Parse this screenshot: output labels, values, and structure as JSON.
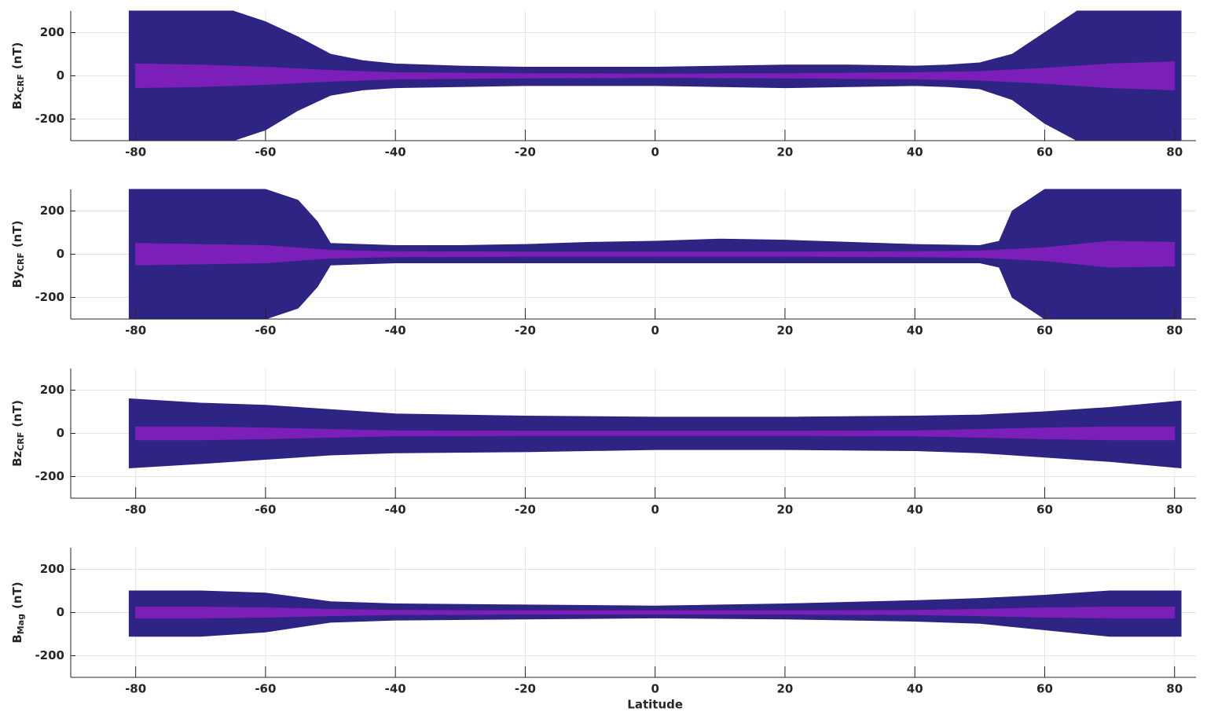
{
  "chart_data": [
    {
      "type": "band",
      "ylabel": "Bx",
      "ylabel_sub": "CRF",
      "ylabel_unit": "(nT)",
      "xlim": [
        -90,
        83.3
      ],
      "xticks": [
        -80,
        -60,
        -40,
        -20,
        0,
        20,
        40,
        60,
        80
      ],
      "ylim": [
        -300,
        300
      ],
      "yticks": [
        -200,
        0,
        200
      ],
      "grid": true,
      "bands": [
        {
          "color": "#2d2483",
          "x": [
            -81,
            -75,
            -65,
            -60,
            -55,
            -50,
            -45,
            -40,
            -30,
            -20,
            -10,
            0,
            10,
            20,
            30,
            40,
            45,
            50,
            55,
            60,
            65,
            75,
            81
          ],
          "upper": [
            300,
            300,
            300,
            250,
            180,
            100,
            70,
            55,
            45,
            40,
            40,
            40,
            45,
            50,
            50,
            45,
            50,
            60,
            100,
            200,
            300,
            300,
            300
          ],
          "lower": [
            -300,
            -300,
            -300,
            -250,
            -160,
            -90,
            -65,
            -55,
            -50,
            -45,
            -45,
            -45,
            -50,
            -55,
            -50,
            -45,
            -50,
            -60,
            -110,
            -220,
            -300,
            -300,
            -300
          ]
        },
        {
          "color": "#7b1fb8",
          "x": [
            -80,
            -70,
            -60,
            -50,
            -40,
            -20,
            0,
            20,
            40,
            50,
            60,
            70,
            80
          ],
          "upper": [
            55,
            50,
            40,
            25,
            15,
            10,
            8,
            10,
            15,
            20,
            35,
            55,
            65
          ],
          "lower": [
            -55,
            -50,
            -40,
            -25,
            -15,
            -10,
            -8,
            -10,
            -15,
            -20,
            -35,
            -55,
            -65
          ]
        }
      ]
    },
    {
      "type": "band",
      "ylabel": "By",
      "ylabel_sub": "CRF",
      "ylabel_unit": "(nT)",
      "xlim": [
        -90,
        83.3
      ],
      "xticks": [
        -80,
        -60,
        -40,
        -20,
        0,
        20,
        40,
        60,
        80
      ],
      "ylim": [
        -300,
        300
      ],
      "yticks": [
        -200,
        0,
        200
      ],
      "grid": true,
      "bands": [
        {
          "color": "#2d2483",
          "x": [
            -81,
            -75,
            -65,
            -60,
            -55,
            -52,
            -50,
            -40,
            -30,
            -20,
            -10,
            0,
            10,
            20,
            30,
            40,
            50,
            53,
            55,
            60,
            65,
            75,
            81
          ],
          "upper": [
            300,
            300,
            300,
            300,
            250,
            150,
            50,
            40,
            40,
            45,
            55,
            60,
            70,
            65,
            55,
            45,
            40,
            60,
            200,
            300,
            300,
            300,
            300
          ],
          "lower": [
            -300,
            -300,
            -300,
            -300,
            -250,
            -150,
            -50,
            -40,
            -40,
            -40,
            -40,
            -40,
            -40,
            -40,
            -40,
            -40,
            -40,
            -60,
            -200,
            -300,
            -300,
            -300,
            -300
          ]
        },
        {
          "color": "#7b1fb8",
          "x": [
            -80,
            -70,
            -60,
            -50,
            -40,
            -20,
            0,
            20,
            40,
            50,
            60,
            70,
            80
          ],
          "upper": [
            50,
            45,
            40,
            18,
            12,
            10,
            10,
            10,
            12,
            15,
            30,
            60,
            55
          ],
          "lower": [
            -50,
            -45,
            -40,
            -18,
            -12,
            -10,
            -10,
            -10,
            -12,
            -15,
            -30,
            -60,
            -55
          ]
        }
      ]
    },
    {
      "type": "band",
      "ylabel": "Bz",
      "ylabel_sub": "CRF",
      "ylabel_unit": "(nT)",
      "xlim": [
        -90,
        83.3
      ],
      "xticks": [
        -80,
        -60,
        -40,
        -20,
        0,
        20,
        40,
        60,
        80
      ],
      "ylim": [
        -300,
        300
      ],
      "yticks": [
        -200,
        0,
        200
      ],
      "grid": true,
      "bands": [
        {
          "color": "#2d2483",
          "x": [
            -81,
            -70,
            -60,
            -50,
            -40,
            -20,
            0,
            20,
            40,
            50,
            60,
            70,
            81
          ],
          "upper": [
            160,
            140,
            130,
            110,
            90,
            80,
            75,
            75,
            80,
            85,
            100,
            120,
            150
          ],
          "lower": [
            -160,
            -140,
            -120,
            -100,
            -90,
            -85,
            -75,
            -75,
            -80,
            -90,
            -110,
            -130,
            -160
          ]
        },
        {
          "color": "#7b1fb8",
          "x": [
            -80,
            -70,
            -60,
            -50,
            -40,
            -20,
            0,
            20,
            40,
            50,
            60,
            70,
            80
          ],
          "upper": [
            30,
            30,
            25,
            18,
            12,
            10,
            10,
            10,
            12,
            18,
            25,
            30,
            30
          ],
          "lower": [
            -30,
            -30,
            -25,
            -18,
            -12,
            -10,
            -10,
            -10,
            -12,
            -18,
            -25,
            -30,
            -30
          ]
        }
      ]
    },
    {
      "type": "band",
      "ylabel": "B",
      "ylabel_sub": "Mag",
      "ylabel_unit": "(nT)",
      "xlim": [
        -90,
        83.3
      ],
      "xticks": [
        -80,
        -60,
        -40,
        -20,
        0,
        20,
        40,
        60,
        80
      ],
      "ylim": [
        -300,
        300
      ],
      "yticks": [
        -200,
        0,
        200
      ],
      "grid": true,
      "xlabel": "Latitude",
      "bands": [
        {
          "color": "#2d2483",
          "x": [
            -81,
            -70,
            -60,
            -50,
            -40,
            -20,
            0,
            20,
            40,
            50,
            60,
            70,
            81
          ],
          "upper": [
            100,
            100,
            90,
            50,
            40,
            35,
            30,
            40,
            55,
            65,
            80,
            100,
            100
          ],
          "lower": [
            -110,
            -110,
            -90,
            -45,
            -35,
            -30,
            -25,
            -30,
            -40,
            -50,
            -80,
            -110,
            -110
          ]
        },
        {
          "color": "#7b1fb8",
          "x": [
            -80,
            -70,
            -60,
            -50,
            -40,
            -20,
            0,
            20,
            40,
            50,
            60,
            70,
            80
          ],
          "upper": [
            25,
            25,
            22,
            15,
            10,
            8,
            8,
            8,
            10,
            15,
            22,
            25,
            25
          ],
          "lower": [
            -25,
            -25,
            -22,
            -15,
            -10,
            -8,
            -8,
            -8,
            -10,
            -15,
            -22,
            -25,
            -25
          ]
        }
      ]
    }
  ]
}
